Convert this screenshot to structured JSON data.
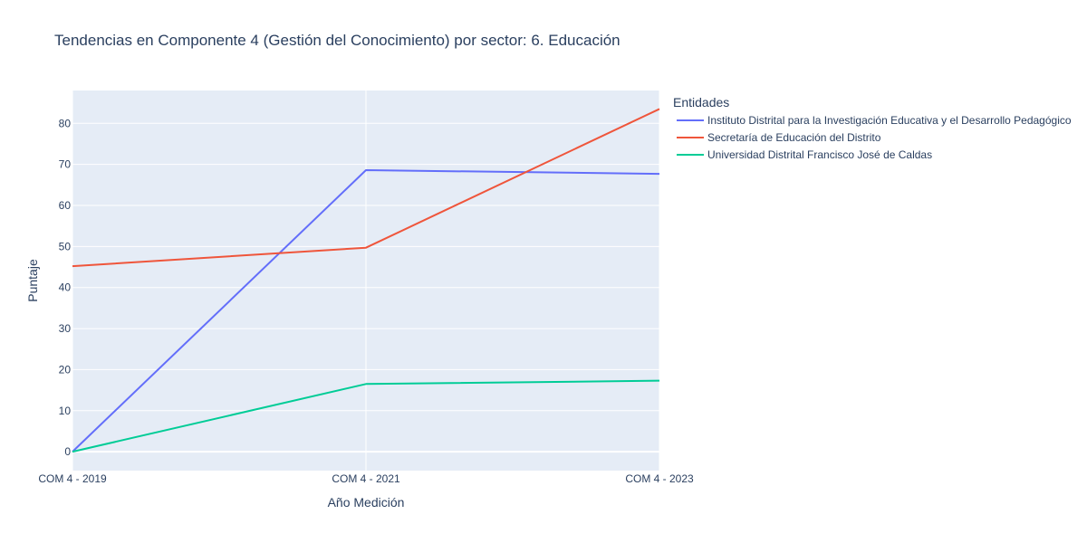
{
  "chart_data": {
    "type": "line",
    "title": "Tendencias en Componente 4 (Gestión del Conocimiento) por sector: 6. Educación",
    "xlabel": "Año Medición",
    "ylabel": "Puntaje",
    "categories": [
      "COM 4 - 2019",
      "COM 4 - 2021",
      "COM 4 - 2023"
    ],
    "yticks": [
      0,
      10,
      20,
      30,
      40,
      50,
      60,
      70,
      80
    ],
    "ylim": [
      -4.6,
      88
    ],
    "grid": true,
    "legend_title": "Entidades",
    "legend_position": "right",
    "plot_background": "#e5ecf6",
    "series": [
      {
        "name": "Instituto Distrital para la Investigación Educativa y el Desarrollo Pedagógico",
        "color": "#636efa",
        "values": [
          0,
          68.6,
          67.7
        ]
      },
      {
        "name": "Secretaría de Educación del Distrito",
        "color": "#ef553b",
        "values": [
          45.2,
          49.7,
          83.5
        ]
      },
      {
        "name": "Universidad Distrital Francisco José de Caldas",
        "color": "#00cc96",
        "values": [
          0,
          16.5,
          17.3
        ]
      }
    ]
  }
}
